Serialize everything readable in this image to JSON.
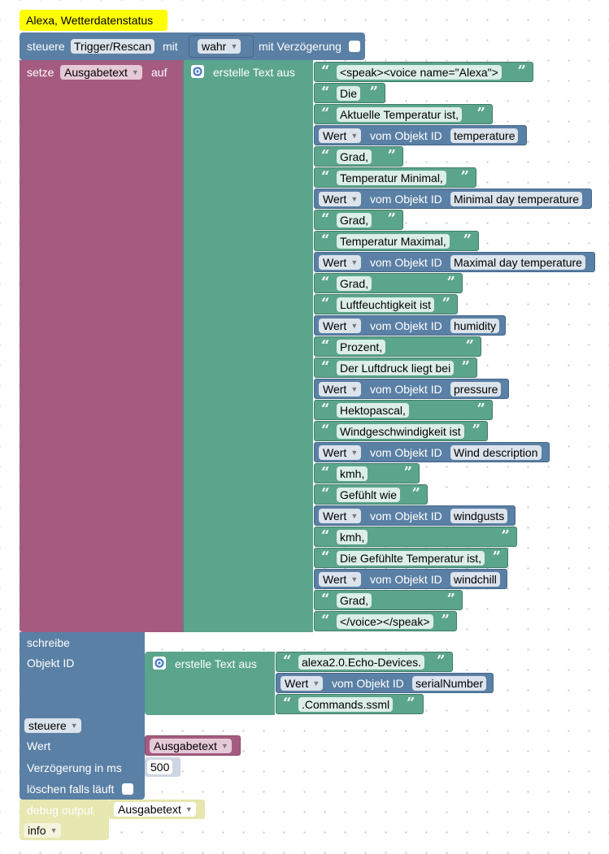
{
  "comment": "Alexa, Wetterdatenstatus",
  "steuere_block": {
    "label": "steuere",
    "target": "Trigger/Rescan",
    "mit": "mit",
    "value": "wahr",
    "delay_label": "mit Verzögerung"
  },
  "setze_block": {
    "label": "setze",
    "variable": "Ausgabetext",
    "auf": "auf",
    "create_text": "erstelle Text aus",
    "text_items": [
      "<speak><voice name=\"Alexa\">",
      "Die",
      "Aktuelle Temperatur ist,",
      "temperature",
      "Grad,",
      "Temperatur Minimal,",
      "Minimal day temperature",
      "Grad,",
      "Temperatur Maximal,",
      "Maximal day temperature",
      "Grad,",
      "Luftfeuchtigkeit ist",
      "humidity",
      "Prozent,",
      "Der Luftdruck liegt bei",
      "pressure",
      "Hektopascal,",
      "Windgeschwindigkeit ist",
      "Wind description",
      "kmh,",
      "Gefühlt wie",
      "windgusts",
      "kmh,",
      "Die Gefühlte Temperatur ist,",
      "windchill",
      "Grad,",
      "</voice></speak>"
    ]
  },
  "value_block": {
    "wert": "Wert",
    "vom_objekt": "vom Objekt ID"
  },
  "schreibe_block": {
    "label": "schreibe",
    "objekt_id": "Objekt ID",
    "create_text": "erstelle Text aus",
    "part1": "alexa2.0.Echo-Devices.",
    "part2": "serialNumber",
    "part3": ".Commands.ssml",
    "mode": "steuere",
    "wert": "Wert",
    "wert_var": "Ausgabetext",
    "delay_label": "Verzögerung in ms",
    "delay_value": "500",
    "clear_label": "löschen falls läuft"
  },
  "debug_block": {
    "label": "debug output",
    "variable": "Ausgabetext",
    "level": "info"
  }
}
